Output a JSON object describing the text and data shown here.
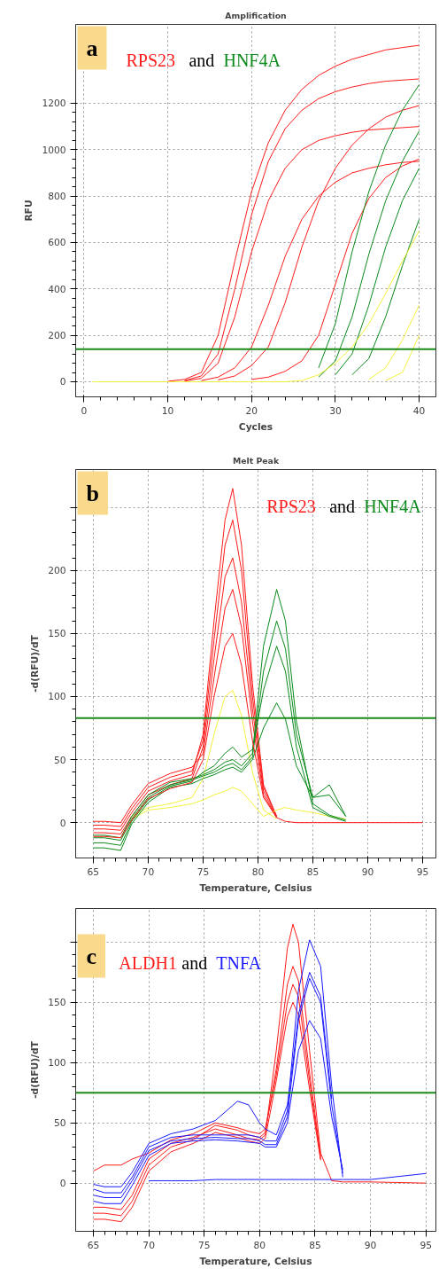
{
  "chart_data": [
    {
      "type": "line",
      "title": "Amplification",
      "xlabel": "Cycles",
      "ylabel": "RFU",
      "annotations": [
        "a",
        "and"
      ],
      "x": [
        1,
        5,
        10,
        12,
        14,
        16,
        18,
        20,
        22,
        24,
        26,
        28,
        30,
        32,
        34,
        36,
        38,
        40
      ],
      "xlim": [
        -1,
        42
      ],
      "xticks": [
        0,
        10,
        20,
        30,
        40
      ],
      "ylim": [
        -65,
        1540
      ],
      "yticks": [
        0,
        200,
        400,
        600,
        800,
        1000,
        1200
      ],
      "grid": true,
      "line_style": "solid",
      "ref_lines": [
        {
          "axis": "y",
          "value": 140,
          "color": "#1a8a1a"
        }
      ],
      "series": [
        {
          "name": "RPS23",
          "color": "#ff1a1a",
          "values": [
            null,
            null,
            2,
            10,
            40,
            200,
            520,
            820,
            1030,
            1170,
            1260,
            1320,
            1360,
            1390,
            1410,
            1430,
            1440,
            1450
          ]
        },
        {
          "color": "#ff1a1a",
          "values": [
            null,
            null,
            null,
            5,
            25,
            120,
            400,
            720,
            950,
            1090,
            1170,
            1220,
            1250,
            1270,
            1285,
            1295,
            1300,
            1305
          ]
        },
        {
          "color": "#ff1a1a",
          "values": [
            null,
            null,
            null,
            3,
            15,
            80,
            280,
            560,
            780,
            920,
            1000,
            1040,
            1060,
            1075,
            1085,
            1090,
            1095,
            1100
          ]
        },
        {
          "color": "#ff1a1a",
          "values": [
            null,
            null,
            null,
            null,
            5,
            20,
            60,
            150,
            330,
            540,
            700,
            800,
            860,
            900,
            920,
            935,
            945,
            950
          ]
        },
        {
          "color": "#ff1a1a",
          "values": [
            null,
            null,
            null,
            null,
            null,
            8,
            25,
            70,
            150,
            340,
            580,
            780,
            920,
            1020,
            1090,
            1140,
            1170,
            1190
          ]
        },
        {
          "color": "#ff1a1a",
          "values": [
            null,
            null,
            null,
            null,
            null,
            null,
            null,
            10,
            20,
            45,
            90,
            200,
            420,
            640,
            790,
            880,
            930,
            960
          ]
        },
        {
          "name": "HNF4A",
          "color": "#0a8a1a",
          "values": [
            null,
            null,
            null,
            null,
            null,
            null,
            null,
            null,
            null,
            null,
            null,
            60,
            250,
            560,
            820,
            1020,
            1170,
            1280
          ]
        },
        {
          "color": "#0a8a1a",
          "values": [
            null,
            null,
            null,
            null,
            null,
            null,
            null,
            null,
            null,
            null,
            null,
            20,
            90,
            280,
            550,
            780,
            950,
            1080
          ]
        },
        {
          "color": "#0a8a1a",
          "values": [
            null,
            null,
            null,
            null,
            null,
            null,
            null,
            null,
            null,
            null,
            null,
            null,
            30,
            120,
            330,
            580,
            780,
            920
          ]
        },
        {
          "color": "#0a8a1a",
          "values": [
            null,
            null,
            null,
            null,
            null,
            null,
            null,
            null,
            null,
            null,
            null,
            null,
            null,
            30,
            100,
            280,
            500,
            700
          ]
        },
        {
          "color": "#f2f23a",
          "values": [
            null,
            null,
            null,
            null,
            null,
            null,
            null,
            null,
            null,
            null,
            null,
            null,
            null,
            null,
            10,
            60,
            180,
            330
          ]
        },
        {
          "color": "#f2f23a",
          "values": [
            null,
            null,
            null,
            null,
            null,
            null,
            null,
            null,
            null,
            null,
            null,
            null,
            null,
            null,
            null,
            5,
            40,
            200
          ]
        },
        {
          "color": "#f2f23a",
          "values": [
            0,
            0,
            0,
            0,
            0,
            0,
            0,
            0,
            0,
            0,
            5,
            30,
            80,
            150,
            250,
            380,
            520,
            650
          ]
        }
      ]
    },
    {
      "type": "line",
      "title": "Melt Peak",
      "xlabel": "Temperature, Celsius",
      "ylabel": "-d(RFU)/dT",
      "annotations": [
        "b",
        "and"
      ],
      "x": [
        65,
        66,
        67.5,
        68.5,
        70,
        72,
        74,
        75,
        76,
        77,
        77.7,
        78.5,
        79.5,
        80.5,
        81.7,
        82.5,
        83.5,
        85,
        86.5,
        88,
        90,
        95
      ],
      "xlim": [
        63.4,
        96.2
      ],
      "xticks": [
        65,
        70,
        75,
        80,
        85,
        90,
        95
      ],
      "ylim": [
        -28,
        280
      ],
      "yticks": [
        0,
        50,
        100,
        150,
        200,
        {
          "value": 250,
          "label": null
        }
      ],
      "grid": true,
      "line_style": "solid",
      "ref_lines": [
        {
          "axis": "y",
          "value": 83,
          "color": "#1a8a1a"
        }
      ],
      "series": [
        {
          "name": "RPS23",
          "color": "#ff1a1a",
          "values": [
            -5,
            -5,
            -6,
            8,
            25,
            33,
            38,
            70,
            160,
            240,
            265,
            220,
            110,
            30,
            5,
            null,
            null,
            null,
            null,
            null,
            null,
            null
          ]
        },
        {
          "color": "#ff1a1a",
          "values": [
            -2,
            -2,
            -3,
            11,
            28,
            36,
            41,
            65,
            145,
            220,
            240,
            200,
            100,
            28,
            5,
            null,
            null,
            null,
            null,
            null,
            null,
            null
          ]
        },
        {
          "color": "#ff1a1a",
          "values": [
            -8,
            -8,
            -9,
            5,
            22,
            30,
            35,
            60,
            130,
            195,
            210,
            175,
            90,
            25,
            4,
            null,
            null,
            null,
            null,
            null,
            null,
            null
          ]
        },
        {
          "color": "#ff1a1a",
          "values": [
            1,
            1,
            0,
            14,
            31,
            39,
            44,
            55,
            115,
            170,
            185,
            155,
            80,
            22,
            4,
            null,
            null,
            null,
            null,
            null,
            null,
            null
          ]
        },
        {
          "color": "#f2f23a",
          "values": [
            null,
            null,
            null,
            5,
            12,
            15,
            20,
            35,
            70,
            100,
            105,
            85,
            40,
            10,
            3,
            null,
            null,
            null,
            null,
            null,
            null,
            null
          ]
        },
        {
          "color": "#f2f23a",
          "values": [
            null,
            null,
            null,
            3,
            10,
            12,
            15,
            18,
            22,
            25,
            28,
            25,
            15,
            5,
            10,
            12,
            10,
            8,
            5,
            3,
            null,
            null
          ]
        },
        {
          "name": "HNF4A",
          "color": "#0a8a1a",
          "values": [
            -10,
            -10,
            -12,
            5,
            22,
            32,
            35,
            38,
            42,
            48,
            50,
            45,
            55,
            140,
            185,
            160,
            80,
            15,
            6,
            2,
            null,
            null
          ]
        },
        {
          "color": "#0a8a1a",
          "values": [
            -12,
            -12,
            -14,
            3,
            20,
            30,
            34,
            37,
            40,
            45,
            47,
            42,
            52,
            120,
            160,
            138,
            70,
            20,
            30,
            5,
            null,
            null
          ]
        },
        {
          "color": "#0a8a1a",
          "values": [
            -16,
            -16,
            -18,
            1,
            18,
            29,
            33,
            40,
            45,
            55,
            60,
            52,
            58,
            105,
            140,
            120,
            60,
            12,
            5,
            1,
            null,
            null
          ]
        },
        {
          "color": "#0a8a1a",
          "values": [
            -20,
            -20,
            -22,
            -1,
            16,
            28,
            31,
            35,
            38,
            42,
            44,
            40,
            50,
            75,
            95,
            82,
            45,
            20,
            22,
            5,
            null,
            null
          ]
        },
        {
          "color": "#ff1a1a",
          "values": [
            -11,
            -11,
            -12,
            2,
            19,
            27,
            32,
            50,
            100,
            140,
            150,
            125,
            65,
            20,
            4,
            1,
            0,
            0,
            0,
            0,
            0,
            0
          ]
        }
      ]
    },
    {
      "type": "line",
      "xlabel": "Temperature, Celsius",
      "ylabel": "-d(RFU)/dT",
      "annotations": [
        "c",
        "and"
      ],
      "x": [
        65,
        66,
        67.5,
        68.5,
        70,
        72,
        74,
        76,
        78,
        79,
        80,
        80.5,
        81.5,
        82.5,
        83,
        83.5,
        84.5,
        85.5,
        86.5,
        87.5,
        88.5,
        90,
        95
      ],
      "xlim": [
        63.4,
        95.9
      ],
      "xticks": [
        65,
        70,
        75,
        80,
        85,
        90,
        95
      ],
      "ylim": [
        -40,
        228
      ],
      "yticks": [
        0,
        50,
        100,
        150,
        {
          "value": 200,
          "label": null
        }
      ],
      "grid": true,
      "line_style": "solid",
      "ref_lines": [
        {
          "axis": "y",
          "value": 75,
          "color": "#1a8a1a"
        }
      ],
      "series": [
        {
          "name": "ALDH1",
          "color": "#ff1a1a",
          "values": [
            -20,
            -20,
            -22,
            -10,
            20,
            33,
            38,
            45,
            40,
            37,
            36,
            40,
            110,
            195,
            215,
            200,
            110,
            25,
            2,
            1,
            1,
            1,
            0
          ]
        },
        {
          "color": "#ff1a1a",
          "values": [
            -25,
            -25,
            -27,
            -15,
            15,
            30,
            36,
            48,
            44,
            40,
            38,
            42,
            95,
            165,
            180,
            168,
            92,
            22,
            null,
            null,
            null,
            null,
            null
          ]
        },
        {
          "color": "#ff1a1a",
          "values": [
            -30,
            -30,
            -32,
            -20,
            10,
            26,
            33,
            42,
            38,
            35,
            33,
            37,
            85,
            138,
            150,
            140,
            78,
            19,
            null,
            null,
            null,
            null,
            null
          ]
        },
        {
          "color": "#ff1a1a",
          "values": [
            10,
            15,
            15,
            20,
            25,
            36,
            41,
            50,
            46,
            43,
            41,
            45,
            90,
            150,
            165,
            155,
            85,
            20,
            null,
            null,
            null,
            null,
            null
          ]
        },
        {
          "name": "TNFA",
          "color": "#1a1aff",
          "values": [
            -5,
            -8,
            -8,
            5,
            30,
            38,
            40,
            40,
            40,
            40,
            38,
            35,
            35,
            60,
            110,
            160,
            202,
            180,
            80,
            5,
            null,
            null,
            null
          ]
        },
        {
          "color": "#1a1aff",
          "values": [
            -10,
            -12,
            -12,
            2,
            27,
            35,
            37,
            38,
            37,
            37,
            35,
            32,
            32,
            55,
            95,
            135,
            170,
            150,
            65,
            8,
            null,
            null,
            null
          ]
        },
        {
          "color": "#1a1aff",
          "values": [
            -15,
            -17,
            -17,
            -2,
            23,
            33,
            35,
            36,
            35,
            34,
            33,
            30,
            30,
            50,
            80,
            110,
            135,
            120,
            55,
            11,
            null,
            null,
            null
          ]
        },
        {
          "color": "#1a1aff",
          "values": [
            -1,
            -3,
            -3,
            9,
            33,
            41,
            45,
            52,
            68,
            65,
            50,
            45,
            40,
            65,
            100,
            140,
            175,
            155,
            70,
            null,
            null,
            null,
            null
          ]
        },
        {
          "color": "#1a1aff",
          "values": [
            null,
            null,
            null,
            null,
            2,
            2,
            2,
            3,
            3,
            3,
            3,
            3,
            3,
            3,
            3,
            3,
            3,
            3,
            3,
            3,
            3,
            3,
            8
          ]
        }
      ]
    }
  ]
}
